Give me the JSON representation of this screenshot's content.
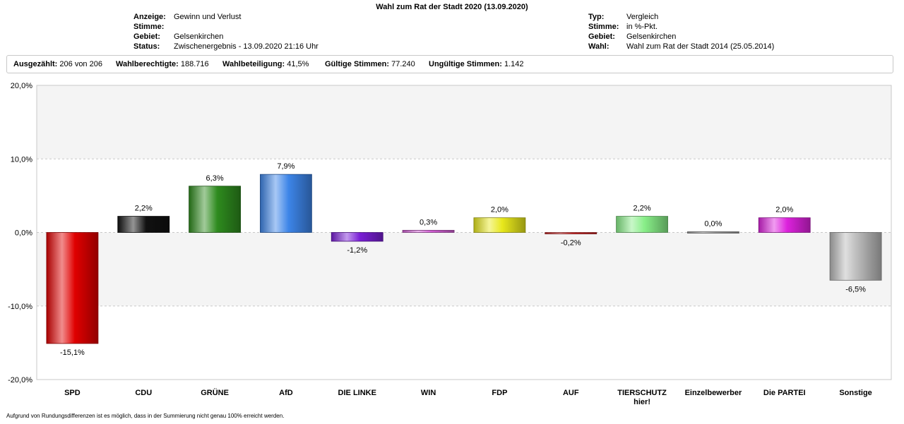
{
  "title": "Wahl zum Rat der Stadt 2020 (13.09.2020)",
  "meta_left": [
    {
      "key": "Anzeige:",
      "value": "Gewinn und Verlust"
    },
    {
      "key": "Stimme:",
      "value": ""
    },
    {
      "key": "Gebiet:",
      "value": "Gelsenkirchen"
    },
    {
      "key": "Status:",
      "value": "Zwischenergebnis - 13.09.2020 21:16 Uhr"
    }
  ],
  "meta_right": [
    {
      "key": "Typ:",
      "value": "Vergleich"
    },
    {
      "key": "Stimme:",
      "value": "in %-Pkt."
    },
    {
      "key": "Gebiet:",
      "value": "Gelsenkirchen"
    },
    {
      "key": "Wahl:",
      "value": "Wahl zum Rat der Stadt 2014 (25.05.2014)"
    }
  ],
  "stats": [
    {
      "key": "Ausgezählt:",
      "value": "206 von 206"
    },
    {
      "key": "Wahlberechtigte:",
      "value": "188.716"
    },
    {
      "key": "Wahlbeteiligung:",
      "value": "41,5%"
    },
    {
      "key": "Gültige Stimmen:",
      "value": "77.240"
    },
    {
      "key": "Ungültige Stimmen:",
      "value": "1.142"
    }
  ],
  "note": "Aufgrund von Rundungsdifferenzen ist es möglich, dass in der Summierung nicht genau 100% erreicht werden.",
  "chart_data": {
    "type": "bar",
    "categories": [
      "SPD",
      "CDU",
      "GRÜNE",
      "AfD",
      "DIE LINKE",
      "WIN",
      "FDP",
      "AUF",
      "TIERSCHUTZ hier!",
      "Einzelbewerber",
      "Die PARTEI",
      "Sonstige"
    ],
    "values": [
      -15.1,
      2.2,
      6.3,
      7.9,
      -1.2,
      0.3,
      2.0,
      -0.2,
      2.2,
      0.0,
      2.0,
      -6.5
    ],
    "value_labels": [
      "-15,1%",
      "2,2%",
      "6,3%",
      "7,9%",
      "-1,2%",
      "0,3%",
      "2,0%",
      "-0,2%",
      "2,2%",
      "0,0%",
      "2,0%",
      "-6,5%"
    ],
    "colors": [
      "#e00000",
      "#111111",
      "#2e8b1e",
      "#3d85e8",
      "#7a1fd6",
      "#d45fd6",
      "#e8e81c",
      "#d03030",
      "#88ee88",
      "#9a9a9a",
      "#dd22dd",
      "#b8b8b8"
    ],
    "ylim": [
      -20,
      20
    ],
    "yticks": [
      20,
      10,
      0,
      -10,
      -20
    ],
    "ytick_labels": [
      "20,0%",
      "10,0%",
      "0,0%",
      "-10,0%",
      "-20,0%"
    ],
    "grid": true
  }
}
